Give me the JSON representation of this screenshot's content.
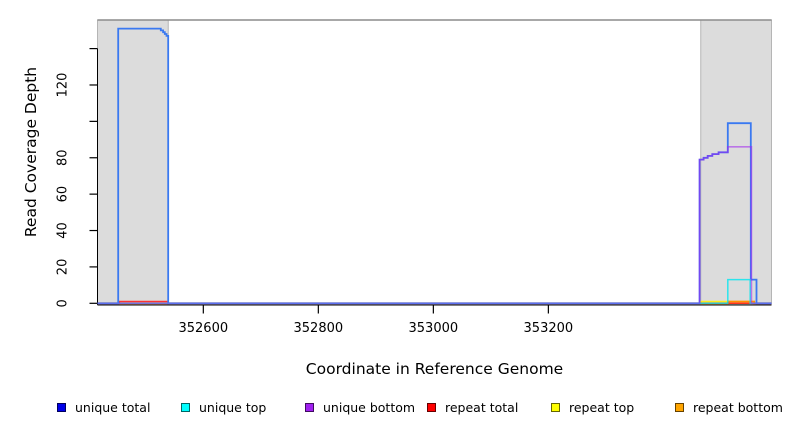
{
  "chart_data": {
    "type": "line",
    "subtype": "step-coverage-profile",
    "title": "",
    "xlabel": "Coordinate in Reference Genome",
    "ylabel": "Read Coverage Depth",
    "xlim": [
      352416,
      353588
    ],
    "ylim": [
      0,
      156
    ],
    "grid": false,
    "x_ticks": [
      352600,
      352800,
      353000,
      353200
    ],
    "y_ticks": [
      0,
      20,
      40,
      60,
      80,
      100,
      120,
      140
    ],
    "y_tick_labels": [
      "0",
      "20",
      "40",
      "60",
      "80",
      "",
      "120",
      ""
    ],
    "highlight_bands": [
      {
        "x_start": 352416,
        "x_end": 352539
      },
      {
        "x_start": 353465,
        "x_end": 353588
      }
    ],
    "band_fill": "#dcdcdc",
    "band_edge": "#b5b5b5",
    "frame_top_color": "#8c8c8c",
    "axis_color": "#000000",
    "legend_position": "bottom",
    "draw_order": [
      "repeat_top",
      "repeat_bottom",
      "repeat_total",
      "unique_total",
      "unique_top",
      "unique_bottom"
    ],
    "series": [
      {
        "key": "unique_total",
        "label": "unique total",
        "line_color": "#3a79f1",
        "line_opacity": 1,
        "line_width": 1.8,
        "legend_color": "#0000e8",
        "points": [
          [
            352416,
            0
          ],
          [
            352452,
            0
          ],
          [
            352452,
            151
          ],
          [
            352526,
            151
          ],
          [
            352526,
            150
          ],
          [
            352530,
            150
          ],
          [
            352530,
            149
          ],
          [
            352533,
            149
          ],
          [
            352533,
            148
          ],
          [
            352536,
            148
          ],
          [
            352536,
            147
          ],
          [
            352539,
            147
          ],
          [
            352539,
            0
          ],
          [
            353463,
            0
          ],
          [
            353463,
            79
          ],
          [
            353470,
            79
          ],
          [
            353470,
            80
          ],
          [
            353477,
            80
          ],
          [
            353477,
            81
          ],
          [
            353485,
            81
          ],
          [
            353485,
            82
          ],
          [
            353496,
            82
          ],
          [
            353496,
            83
          ],
          [
            353512,
            83
          ],
          [
            353512,
            99
          ],
          [
            353552,
            99
          ],
          [
            353552,
            13
          ],
          [
            353562,
            13
          ],
          [
            353562,
            0
          ],
          [
            353588,
            0
          ]
        ]
      },
      {
        "key": "unique_top",
        "label": "unique top",
        "line_color": "#00e6f0",
        "line_opacity": 0.8,
        "line_width": 1.5,
        "legend_color": "#00ffff",
        "points": [
          [
            352416,
            0
          ],
          [
            353512,
            0
          ],
          [
            353512,
            13
          ],
          [
            353551,
            13
          ],
          [
            353551,
            0
          ],
          [
            353588,
            0
          ]
        ]
      },
      {
        "key": "unique_bottom",
        "label": "unique bottom",
        "line_color": "#a020f0",
        "line_opacity": 0.55,
        "line_width": 1.7,
        "legend_color": "#a020f0",
        "points": [
          [
            352416,
            0
          ],
          [
            353463,
            0
          ],
          [
            353463,
            79
          ],
          [
            353470,
            79
          ],
          [
            353470,
            80
          ],
          [
            353477,
            80
          ],
          [
            353477,
            81
          ],
          [
            353485,
            81
          ],
          [
            353485,
            82
          ],
          [
            353496,
            82
          ],
          [
            353496,
            83
          ],
          [
            353512,
            83
          ],
          [
            353512,
            86
          ],
          [
            353553,
            86
          ],
          [
            353553,
            0
          ],
          [
            353588,
            0
          ]
        ]
      },
      {
        "key": "repeat_total",
        "label": "repeat total",
        "line_color": "#ff2020",
        "line_opacity": 0.9,
        "line_width": 1.5,
        "legend_color": "#ff0000",
        "points": [
          [
            352416,
            0
          ],
          [
            352454,
            0
          ],
          [
            352454,
            1
          ],
          [
            352539,
            1
          ],
          [
            352539,
            0
          ],
          [
            353588,
            0
          ]
        ]
      },
      {
        "key": "repeat_top",
        "label": "repeat top",
        "line_color": "#ffee00",
        "line_opacity": 0.9,
        "line_width": 1.5,
        "legend_color": "#ffff00",
        "points": [
          [
            352416,
            0
          ],
          [
            353466,
            0
          ],
          [
            353466,
            1
          ],
          [
            353512,
            1
          ],
          [
            353512,
            0
          ],
          [
            353588,
            0
          ]
        ]
      },
      {
        "key": "repeat_bottom",
        "label": "repeat bottom",
        "line_color": "#ff9100",
        "line_opacity": 1,
        "line_width": 1.8,
        "legend_color": "#ffa500",
        "points": [
          [
            352416,
            0
          ],
          [
            353513,
            0
          ],
          [
            353513,
            1
          ],
          [
            353558,
            1
          ],
          [
            353558,
            0
          ],
          [
            353588,
            0
          ]
        ]
      }
    ]
  }
}
